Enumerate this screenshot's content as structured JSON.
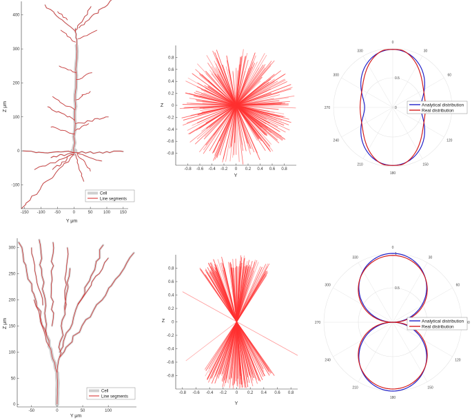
{
  "colors": {
    "cell": "#cfcfcf",
    "segment": "#d42020",
    "radial": "#ff3030",
    "analytical": "#2020c8",
    "real": "#d41c1c",
    "axis": "#333333",
    "grid": "#e3e3e3"
  },
  "chart_data": [
    {
      "id": "morph-top",
      "type": "morphology",
      "xlabel": "Y μm",
      "ylabel": "Z μm",
      "xlim": [
        -160,
        165
      ],
      "ylim": [
        -170,
        440
      ],
      "xticks": [
        -150,
        -100,
        -50,
        0,
        50,
        100,
        150
      ],
      "yticks": [
        -100,
        0,
        100,
        200,
        300,
        400
      ],
      "legend": [
        "Cell",
        "Line segments"
      ]
    },
    {
      "id": "radial-top",
      "type": "radial-lines",
      "xlabel": "Y",
      "ylabel": "Z",
      "xlim": [
        -1,
        1
      ],
      "ylim": [
        -1,
        1
      ],
      "xticks": [
        -0.8,
        -0.6,
        -0.4,
        -0.2,
        0,
        0.2,
        0.4,
        0.6,
        0.8
      ],
      "yticks": [
        -0.8,
        -0.6,
        -0.4,
        -0.2,
        0,
        0.2,
        0.4,
        0.6,
        0.8
      ],
      "line_count": 260,
      "angular_spread": "full"
    },
    {
      "id": "polar-top",
      "type": "polar",
      "angle_ticks": [
        "0",
        "30",
        "60",
        "90",
        "120",
        "150",
        "180",
        "210",
        "240",
        "270",
        "300",
        "330"
      ],
      "radial_ticks": [
        "0",
        "0.5"
      ],
      "series": [
        {
          "name": "Analytical distribution",
          "a": 1.0,
          "b": 0.55,
          "c": 0.0
        },
        {
          "name": "Real distribution",
          "a": 0.97,
          "b": 0.6,
          "c": 0.05
        }
      ]
    },
    {
      "id": "morph-bottom",
      "type": "morphology",
      "xlabel": "Y μm",
      "ylabel": "Z μm",
      "xlim": [
        -78,
        155
      ],
      "ylim": [
        -5,
        318
      ],
      "xticks": [
        -50,
        0,
        50,
        100
      ],
      "yticks": [
        0,
        50,
        100,
        150,
        200,
        250,
        300
      ],
      "legend": [
        "Cell",
        "Line segments"
      ]
    },
    {
      "id": "radial-bottom",
      "type": "radial-lines",
      "xlabel": "Y",
      "ylabel": "Z",
      "xlim": [
        -0.9,
        0.9
      ],
      "ylim": [
        -1,
        1
      ],
      "xticks": [
        -0.8,
        -0.6,
        -0.4,
        -0.2,
        0,
        0.2,
        0.4,
        0.6,
        0.8
      ],
      "yticks": [
        -0.8,
        -0.6,
        -0.4,
        -0.2,
        0,
        0.2,
        0.4,
        0.6,
        0.8
      ],
      "line_count": 200,
      "angular_spread": "cone-35"
    },
    {
      "id": "polar-bottom",
      "type": "polar",
      "angle_ticks": [
        "0",
        "30",
        "60",
        "90",
        "120",
        "150",
        "180",
        "210",
        "240",
        "270",
        "300",
        "330"
      ],
      "radial_ticks": [
        "0.5",
        "1"
      ],
      "series": [
        {
          "name": "Analytical distribution",
          "a": 1.0,
          "b": 0.0,
          "c": 0.0,
          "p": 3
        },
        {
          "name": "Real distribution",
          "a": 0.97,
          "b": 0.0,
          "c": 0.0,
          "p": 2.6
        }
      ]
    }
  ]
}
